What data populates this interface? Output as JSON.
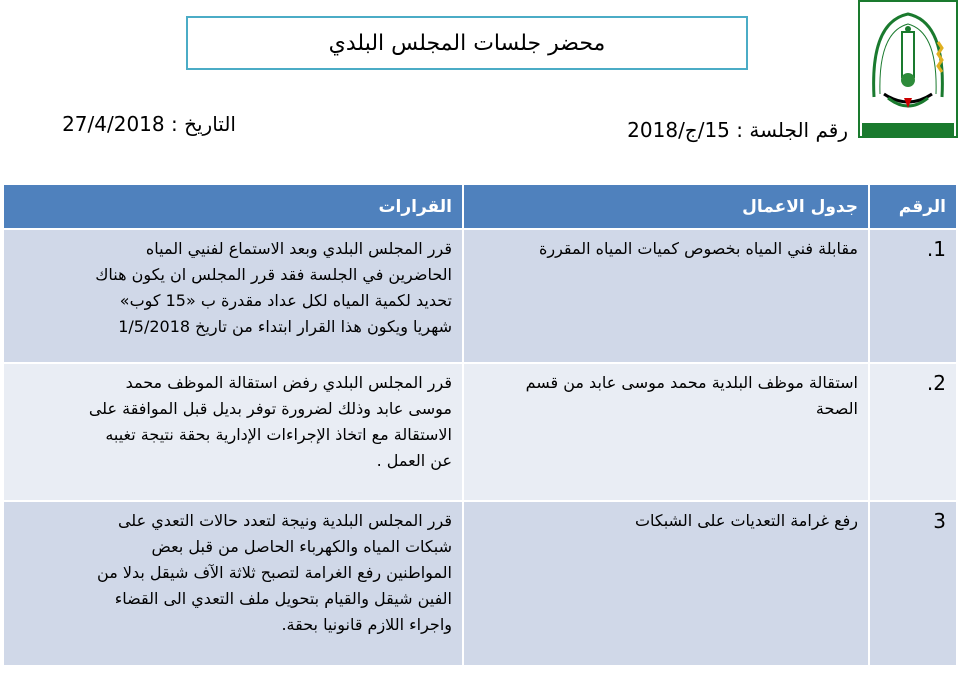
{
  "header": {
    "title": "محضر جلسات المجلس البلدي",
    "session_number": "رقم الجلسة : 15/ج/2018",
    "date": "التاريخ : 27/4/2018",
    "logo": {
      "text": "بلدية قبلان",
      "years": "١٩٩٧ تأسست ١٤١٧",
      "motto": "وتعاونوا على البر والتقوى"
    }
  },
  "colors": {
    "header_bg": "#4f81bd",
    "row_dark": "#d0d8e8",
    "row_light": "#e9edf4",
    "title_border": "#4bacc6"
  },
  "table": {
    "headers": [
      "الرقم",
      "جدول الاعمال",
      "القرارات"
    ],
    "rows": [
      {
        "num": "1.",
        "agenda": [
          "مقابلة فني المياه بخصوص كميات المياه المقررة"
        ],
        "decision": [
          "قرر المجلس البلدي وبعد الاستماع لفنيي المياه",
          "الحاضرين في الجلسة فقد قرر المجلس ان يكون هناك",
          "تحديد لكمية المياه لكل عداد مقدرة ب «15 كوب»",
          "شهريا ويكون هذا القرار ابتداء من تاريخ 1/5/2018"
        ]
      },
      {
        "num": "2.",
        "agenda": [
          "استقالة موظف البلدية محمد موسى عابد من قسم",
          "الصحة"
        ],
        "decision": [
          "قرر المجلس البلدي رفض استقالة الموظف محمد",
          "موسى عابد وذلك لضرورة توفر بديل قبل الموافقة على",
          "الاستقالة مع اتخاذ الإجراءات الإدارية بحقة نتيجة تغيبه",
          "عن العمل ."
        ]
      },
      {
        "num": "3",
        "agenda": [
          "رفع غرامة التعديات على الشبكات"
        ],
        "decision": [
          "قرر المجلس البلدية ونيجة لتعدد حالات التعدي على",
          "شبكات المياه والكهرباء الحاصل من قبل بعض",
          "المواطنين رفع الغرامة لتصبح ثلاثة الآف شيقل بدلا من",
          "الفين شيقل والقيام بتحويل ملف التعدي الى القضاء",
          "واجراء اللازم قانونيا بحقة."
        ]
      }
    ]
  }
}
